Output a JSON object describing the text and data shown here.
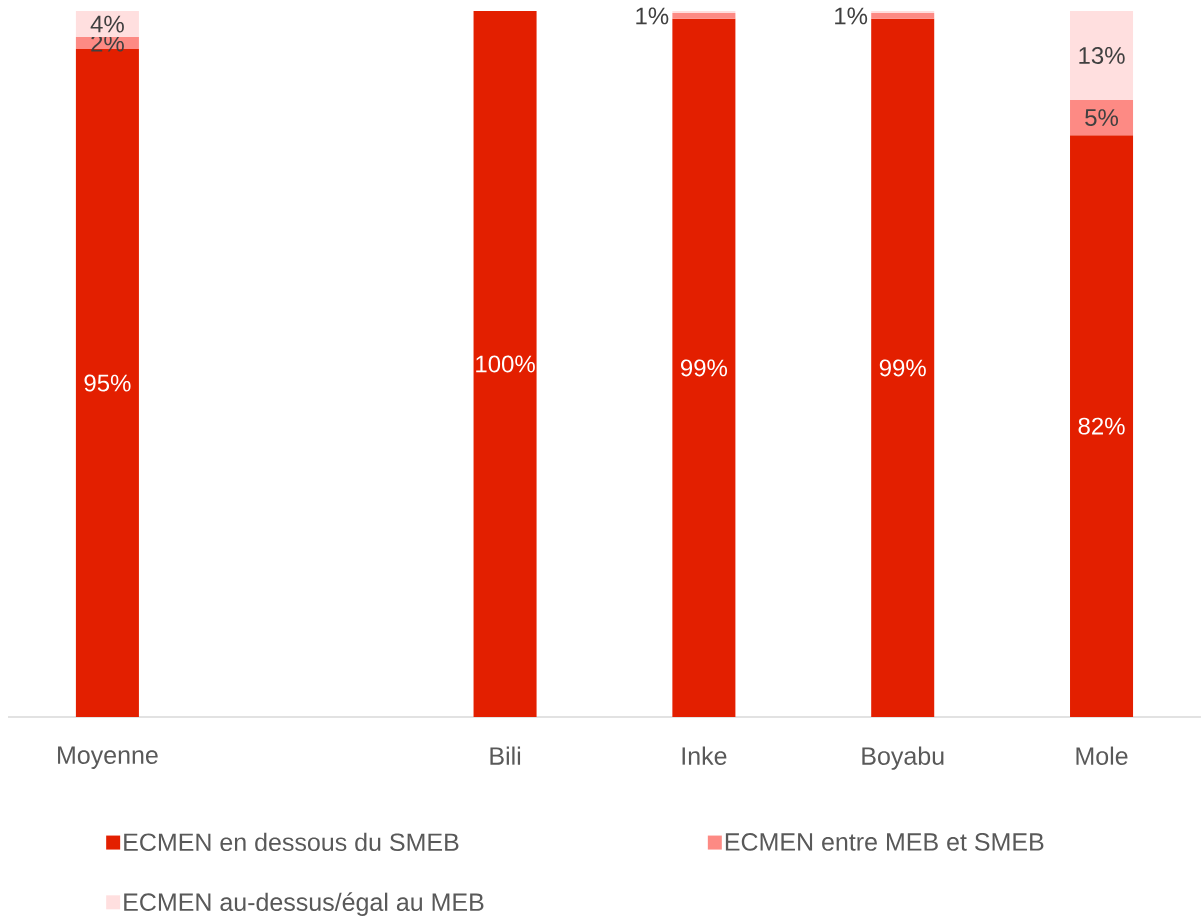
{
  "chart_data": {
    "type": "bar",
    "stacked": true,
    "categories": [
      "Moyenne",
      null,
      "Bili",
      "Inke",
      "Boyabu",
      "Mole"
    ],
    "series": [
      {
        "name": "ECMEN en dessous du SMEB",
        "color": "#e31f00",
        "values": [
          94.6,
          null,
          100,
          98.9,
          98.9,
          82.4
        ],
        "value_labels": [
          "95%",
          null,
          "100%",
          "99%",
          "99%",
          "82%"
        ]
      },
      {
        "name": "ECMEN entre MEB et SMEB",
        "color": "#fd8a84",
        "values": [
          1.7,
          null,
          null,
          0.8,
          0.8,
          5.0
        ],
        "value_labels": [
          "2%",
          null,
          null,
          "1%",
          "1%",
          "5%"
        ]
      },
      {
        "name": "ECMEN au-dessus/égal au MEB",
        "color": "#ffdfdf",
        "values": [
          3.7,
          null,
          null,
          0.3,
          0.3,
          12.6
        ],
        "value_labels": [
          "4%",
          null,
          null,
          null,
          null,
          "13%"
        ]
      }
    ],
    "ylim": [
      0,
      100
    ],
    "tick_labels": "x",
    "legend": "bottom"
  }
}
